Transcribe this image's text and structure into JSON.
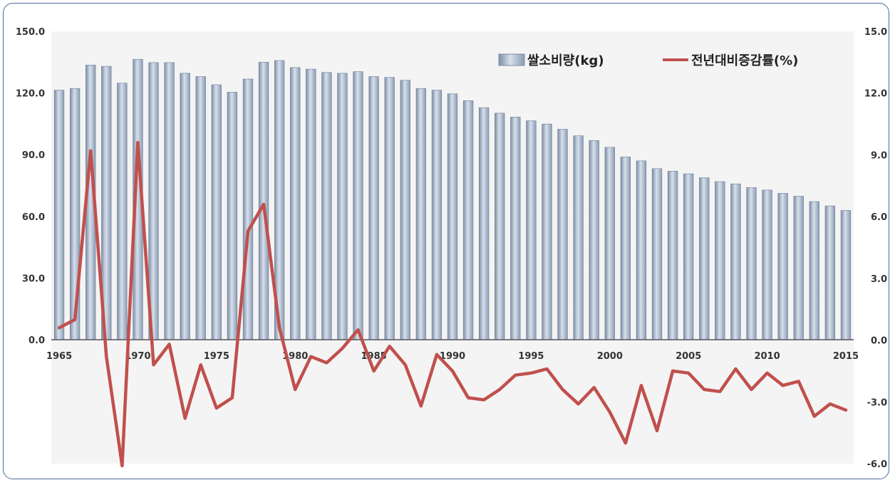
{
  "chart_data": {
    "type": "bar",
    "x": [
      1965,
      1966,
      1967,
      1968,
      1969,
      1970,
      1971,
      1972,
      1973,
      1974,
      1975,
      1976,
      1977,
      1978,
      1979,
      1980,
      1981,
      1982,
      1983,
      1984,
      1985,
      1986,
      1987,
      1988,
      1989,
      1990,
      1991,
      1992,
      1993,
      1994,
      1995,
      1996,
      1997,
      1998,
      1999,
      2000,
      2001,
      2002,
      2003,
      2004,
      2005,
      2006,
      2007,
      2008,
      2009,
      2010,
      2011,
      2012,
      2013,
      2014,
      2015
    ],
    "x_tick_labels": [
      "1965",
      "1970",
      "1975",
      "1980",
      "1985",
      "1990",
      "1995",
      "2000",
      "2005",
      "2010",
      "2015"
    ],
    "series": [
      {
        "name": "쌀소비량(kg)",
        "type": "bar",
        "axis": "left",
        "color": "#a9b9cf",
        "values": [
          121.4,
          122.2,
          133.6,
          133.0,
          124.8,
          136.4,
          134.8,
          134.8,
          129.6,
          128.0,
          124.0,
          120.4,
          126.8,
          135.0,
          135.8,
          132.4,
          131.6,
          130.0,
          129.6,
          130.4,
          128.0,
          127.6,
          126.2,
          122.2,
          121.4,
          119.6,
          116.3,
          112.9,
          110.2,
          108.3,
          106.5,
          104.9,
          102.4,
          99.2,
          96.9,
          93.6,
          88.9,
          87.0,
          83.2,
          82.0,
          80.7,
          78.8,
          76.9,
          75.8,
          74.0,
          72.8,
          71.2,
          69.8,
          67.2,
          65.1,
          62.9
        ]
      },
      {
        "name": "전년대비증감률(%)",
        "type": "line",
        "axis": "right",
        "color": "#c0504d",
        "values": [
          0.6,
          1.0,
          9.2,
          -0.8,
          -6.1,
          9.6,
          -1.2,
          -0.2,
          -3.8,
          -1.2,
          -3.3,
          -2.8,
          5.3,
          6.6,
          0.6,
          -2.4,
          -0.8,
          -1.1,
          -0.4,
          0.5,
          -1.5,
          -0.3,
          -1.2,
          -3.2,
          -0.7,
          -1.5,
          -2.8,
          -2.9,
          -2.4,
          -1.7,
          -1.6,
          -1.4,
          -2.4,
          -3.1,
          -2.3,
          -3.5,
          -5.0,
          -2.2,
          -4.4,
          -1.5,
          -1.6,
          -2.4,
          -2.5,
          -1.4,
          -2.4,
          -1.6,
          -2.2,
          -2.0,
          -3.7,
          -3.1,
          -3.4
        ]
      }
    ],
    "y_left": {
      "ylim": [
        0,
        150
      ],
      "ticks": [
        "0.0",
        "30.0",
        "60.0",
        "90.0",
        "120.0",
        "150.0"
      ]
    },
    "y_right": {
      "ylim": [
        -6,
        15
      ],
      "ticks": [
        "-6.0",
        "-3.0",
        "0.0",
        "3.0",
        "6.0",
        "9.0",
        "12.0",
        "15.0"
      ]
    },
    "legend": {
      "placement": "top-right"
    },
    "grid": false
  }
}
